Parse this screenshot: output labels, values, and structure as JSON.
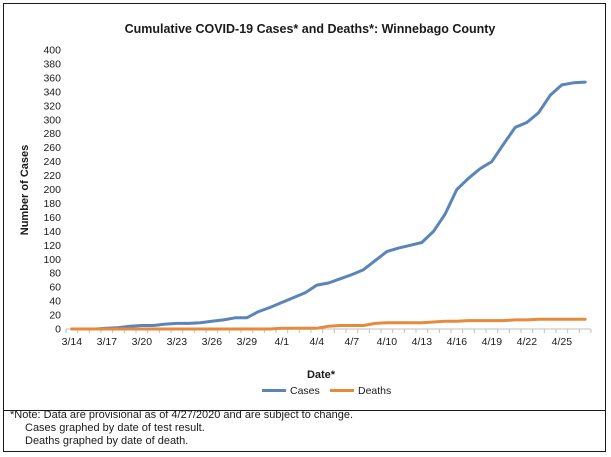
{
  "chart_data": {
    "type": "line",
    "title": "Cumulative COVID-19 Cases* and Deaths*: Winnebago County",
    "xlabel": "Date*",
    "ylabel": "Number of Cases",
    "ylim": [
      0,
      400
    ],
    "yticks": [
      0,
      20,
      40,
      60,
      80,
      100,
      120,
      140,
      160,
      180,
      200,
      220,
      240,
      260,
      280,
      300,
      320,
      340,
      360,
      380,
      400
    ],
    "x": [
      "3/14",
      "3/15",
      "3/16",
      "3/17",
      "3/18",
      "3/19",
      "3/20",
      "3/21",
      "3/22",
      "3/23",
      "3/24",
      "3/25",
      "3/26",
      "3/27",
      "3/28",
      "3/29",
      "3/30",
      "3/31",
      "4/1",
      "4/2",
      "4/3",
      "4/4",
      "4/5",
      "4/6",
      "4/7",
      "4/8",
      "4/9",
      "4/10",
      "4/11",
      "4/12",
      "4/13",
      "4/14",
      "4/15",
      "4/16",
      "4/17",
      "4/18",
      "4/19",
      "4/20",
      "4/21",
      "4/22",
      "4/23",
      "4/24",
      "4/25",
      "4/26",
      "4/27"
    ],
    "xtick_labels": [
      "3/14",
      "3/17",
      "3/20",
      "3/23",
      "3/26",
      "3/29",
      "4/1",
      "4/4",
      "4/7",
      "4/10",
      "4/13",
      "4/16",
      "4/19",
      "4/22",
      "4/25"
    ],
    "series": [
      {
        "name": "Cases",
        "color": "#5b84b8",
        "values": [
          0,
          0,
          0,
          1,
          2,
          4,
          5,
          5,
          7,
          8,
          8,
          9,
          11,
          13,
          16,
          16,
          25,
          31,
          38,
          45,
          52,
          63,
          66,
          72,
          78,
          85,
          98,
          111,
          116,
          120,
          124,
          140,
          165,
          200,
          216,
          230,
          240,
          265,
          289,
          296,
          310,
          335,
          350,
          353,
          354
        ]
      },
      {
        "name": "Deaths",
        "color": "#e68a3d",
        "values": [
          0,
          0,
          0,
          0,
          0,
          0,
          0,
          0,
          0,
          0,
          0,
          0,
          0,
          0,
          0,
          0,
          0,
          0,
          1,
          1,
          1,
          1,
          4,
          5,
          5,
          5,
          8,
          9,
          9,
          9,
          9,
          10,
          11,
          11,
          12,
          12,
          12,
          12,
          13,
          13,
          14,
          14,
          14,
          14,
          14
        ]
      }
    ],
    "legend_position": "bottom",
    "grid": false
  },
  "notes": {
    "line1": "*Note: Data are provisional as of 4/27/2020 and are subject to change.",
    "line2": "Cases graphed by date of test result.",
    "line3": "Deaths graphed by date of death."
  }
}
